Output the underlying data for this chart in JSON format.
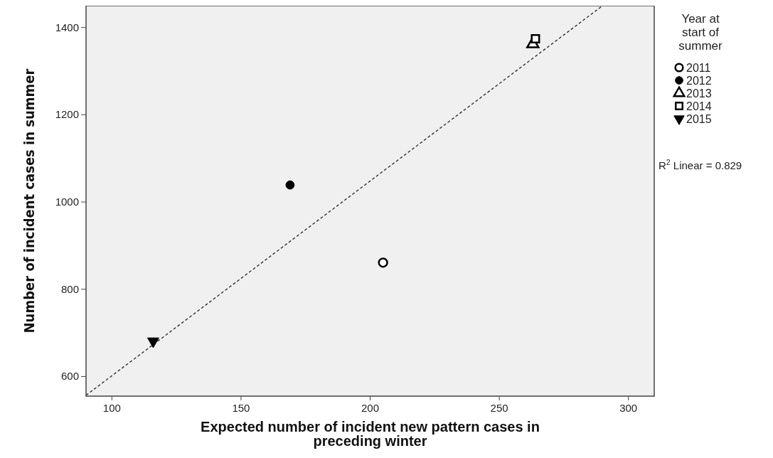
{
  "chart_data": {
    "type": "scatter",
    "xlabel": "Expected number of incident new pattern cases in preceding winter",
    "ylabel": "Number of incident cases in summer",
    "legend_title": "Year at start of summer",
    "xlim": [
      90,
      310
    ],
    "ylim": [
      555,
      1450
    ],
    "xticks": [
      100,
      150,
      200,
      250,
      300
    ],
    "yticks": [
      600,
      800,
      1000,
      1200,
      1400
    ],
    "grid": false,
    "legend": "top right",
    "series": [
      {
        "name": "2011",
        "color": "#000000",
        "marker": "circle-open",
        "x": [
          205
        ],
        "values": [
          861
        ]
      },
      {
        "name": "2012",
        "color": "#000000",
        "marker": "circle",
        "x": [
          169
        ],
        "values": [
          1039
        ]
      },
      {
        "name": "2013",
        "color": "#000000",
        "marker": "triangle-open",
        "x": [
          263
        ],
        "values": [
          1362
        ]
      },
      {
        "name": "2014",
        "color": "#000000",
        "marker": "square-open",
        "x": [
          264
        ],
        "values": [
          1374
        ]
      },
      {
        "name": "2015",
        "color": "#000000",
        "marker": "triangle-down",
        "x": [
          116
        ],
        "values": [
          681
        ]
      },
      {
        "type": "line",
        "color": "#333333",
        "line_style": "dashed",
        "x": [
          90,
          290
        ],
        "values": [
          557,
          1450
        ]
      }
    ],
    "annotations": [
      "R$^{2}$ Linear = 0.829"
    ]
  }
}
